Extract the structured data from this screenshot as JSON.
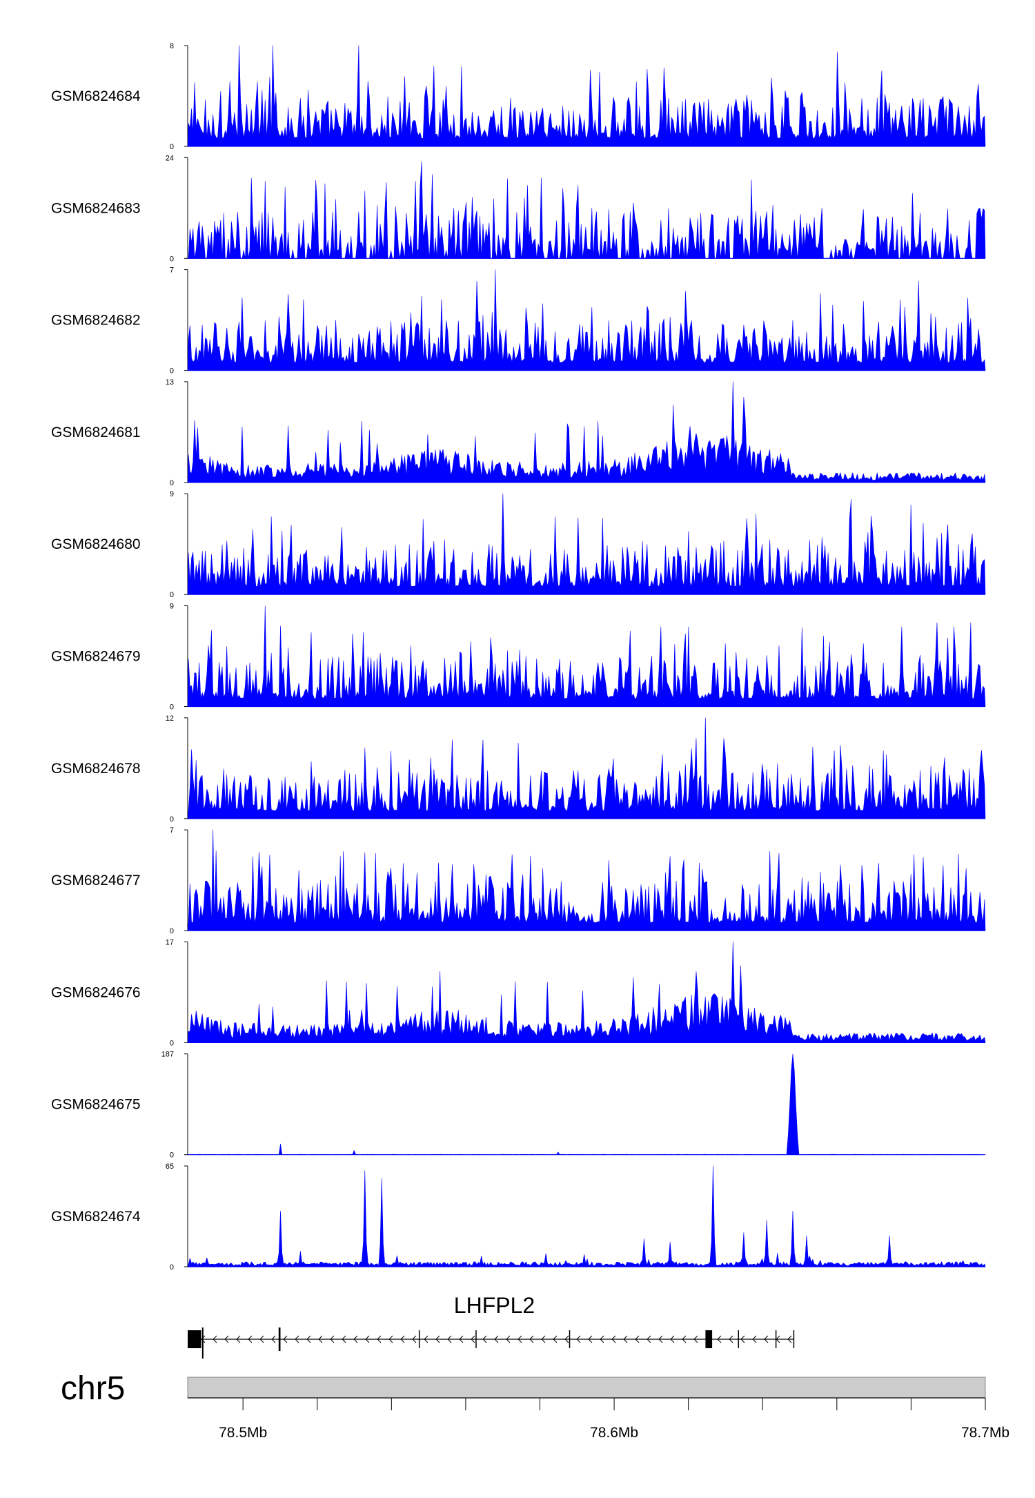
{
  "chart_data": {
    "type": "area",
    "xlabel": "",
    "ylabel": "",
    "series_color": "#0000ff",
    "x_range_mb": [
      78.4851,
      78.7
    ],
    "tracks": [
      {
        "name": "GSM6824684",
        "ymax": "8",
        "ymin": "0",
        "pattern": "uniform",
        "peak_values": [
          8,
          8,
          8,
          7.5,
          7.5
        ],
        "peak_positions_mb": [
          78.499,
          78.508,
          78.531,
          78.66,
          78.66
        ]
      },
      {
        "name": "GSM6824683",
        "ymax": "24",
        "ymin": "0",
        "pattern": "uniform_sparse",
        "peak_values": [
          23,
          20,
          16
        ],
        "peak_positions_mb": [
          78.548,
          78.551,
          78.533
        ]
      },
      {
        "name": "GSM6824682",
        "ymax": "7",
        "ymin": "0",
        "pattern": "uniform",
        "peak_values": [
          7,
          6.2,
          6.2
        ],
        "peak_positions_mb": [
          78.568,
          78.563,
          78.682
        ]
      },
      {
        "name": "GSM6824681",
        "ymax": "13",
        "ymin": "0",
        "pattern": "enriched_region",
        "peak_values": [
          13,
          11,
          10,
          7,
          8
        ],
        "peak_positions_mb": [
          78.632,
          78.635,
          78.616,
          78.588,
          78.487
        ]
      },
      {
        "name": "GSM6824680",
        "ymax": "9",
        "ymin": "0",
        "pattern": "uniform",
        "peak_values": [
          9,
          8.5,
          8
        ],
        "peak_positions_mb": [
          78.57,
          78.664,
          78.68
        ]
      },
      {
        "name": "GSM6824679",
        "ymax": "9",
        "ymin": "0",
        "pattern": "uniform",
        "peak_values": [
          9,
          7.5,
          7.5
        ],
        "peak_positions_mb": [
          78.506,
          78.696,
          78.687
        ]
      },
      {
        "name": "GSM6824678",
        "ymax": "12",
        "ymin": "0",
        "pattern": "uniform",
        "peak_values": [
          12,
          7,
          6.5
        ],
        "peak_positions_mb": [
          78.6245,
          78.545,
          78.64
        ]
      },
      {
        "name": "GSM6824677",
        "ymax": "7",
        "ymin": "0",
        "pattern": "uniform",
        "peak_values": [
          7,
          5.5,
          5.5
        ],
        "peak_positions_mb": [
          78.492,
          78.527,
          78.642
        ]
      },
      {
        "name": "GSM6824676",
        "ymax": "17",
        "ymin": "0",
        "pattern": "enriched_region",
        "peak_values": [
          17,
          13,
          12,
          11,
          12
        ],
        "peak_positions_mb": [
          78.632,
          78.634,
          78.553,
          78.605,
          78.622
        ]
      },
      {
        "name": "GSM6824675",
        "ymax": "187",
        "ymin": "0",
        "pattern": "single_peak",
        "peak_values": [
          187,
          20,
          8,
          5,
          8
        ],
        "peak_positions_mb": [
          78.648,
          78.51,
          78.53,
          78.585,
          78.7
        ]
      },
      {
        "name": "GSM6824674",
        "ymax": "65",
        "ymin": "0",
        "pattern": "sparse_peaks",
        "peak_values": [
          65,
          62,
          57,
          36,
          36,
          30,
          22,
          20,
          20,
          18,
          16,
          10,
          8
        ],
        "peak_positions_mb": [
          78.6265,
          78.533,
          78.5375,
          78.51,
          78.648,
          78.641,
          78.635,
          78.674,
          78.652,
          78.608,
          78.615,
          78.5155,
          78.592
        ]
      }
    ],
    "gene": {
      "name": "LHFPL2",
      "strand": "-",
      "start_mb": 78.4851,
      "end_mb": 78.6485,
      "exons_mb": [
        [
          78.4851,
          78.4886
        ],
        [
          78.5096,
          78.5101
        ],
        [
          78.6246,
          78.6264
        ]
      ],
      "intron_marks_mb": [
        78.4886,
        78.5475,
        78.5628,
        78.588,
        78.6335,
        78.6436,
        78.6484
      ]
    },
    "chromosome": "chr5",
    "x_ticks": [
      {
        "pos": 78.5,
        "label": "78.5Mb"
      },
      {
        "pos": 78.52,
        "label": ""
      },
      {
        "pos": 78.54,
        "label": ""
      },
      {
        "pos": 78.56,
        "label": ""
      },
      {
        "pos": 78.58,
        "label": ""
      },
      {
        "pos": 78.6,
        "label": "78.6Mb"
      },
      {
        "pos": 78.62,
        "label": ""
      },
      {
        "pos": 78.64,
        "label": ""
      },
      {
        "pos": 78.66,
        "label": ""
      },
      {
        "pos": 78.68,
        "label": ""
      },
      {
        "pos": 78.7,
        "label": "78.7Mb"
      }
    ]
  }
}
